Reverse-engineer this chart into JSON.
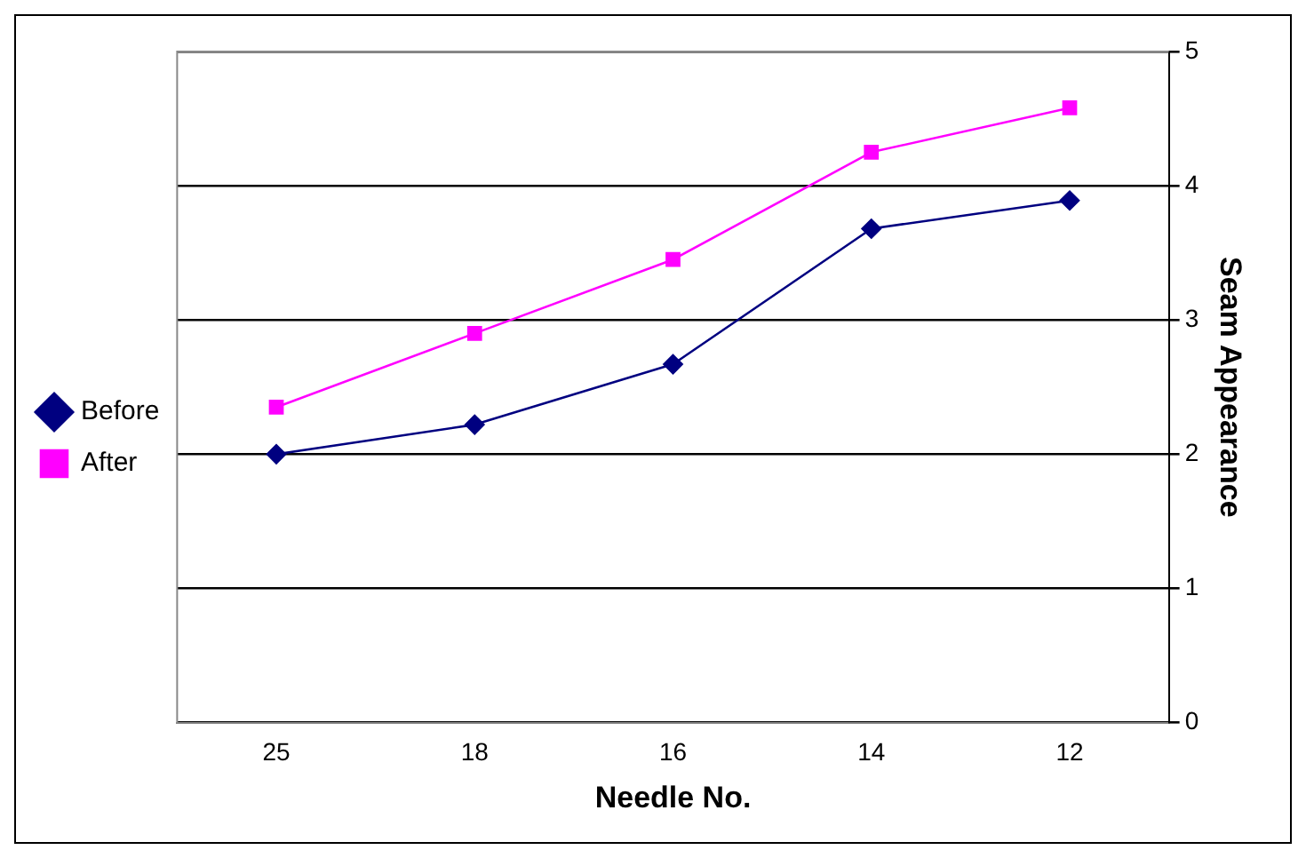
{
  "chart_data": {
    "type": "line",
    "categories": [
      "25",
      "18",
      "16",
      "14",
      "12"
    ],
    "series": [
      {
        "name": "Before",
        "color": "#000080",
        "values": [
          2.0,
          2.22,
          2.67,
          3.68,
          3.89
        ],
        "marker": "diamond"
      },
      {
        "name": "After",
        "color": "#ff00ff",
        "values": [
          2.35,
          2.9,
          3.45,
          4.25,
          4.58
        ],
        "marker": "square"
      }
    ],
    "xlabel": "Needle No.",
    "ylabel": "Seam Appearance",
    "ylim": [
      0,
      5
    ],
    "yticks": [
      0,
      1,
      2,
      3,
      4,
      5
    ],
    "grid": "y",
    "legend": "left",
    "line_style": "solid"
  }
}
